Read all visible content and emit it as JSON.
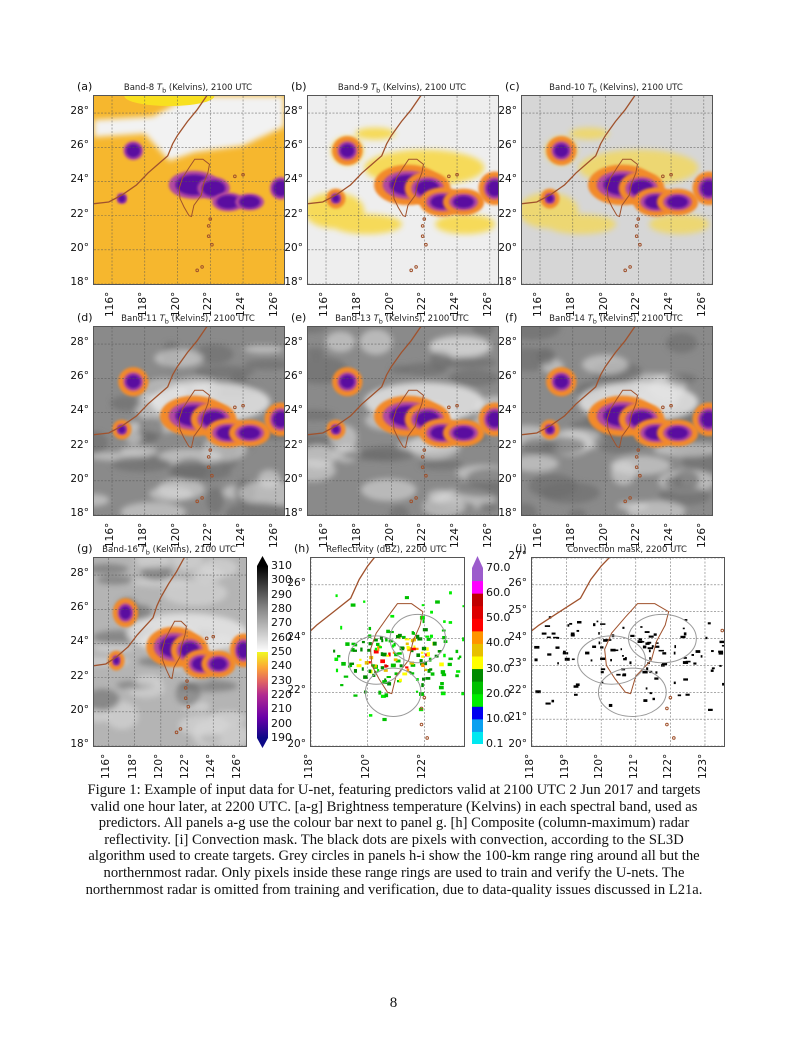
{
  "figure": {
    "panels": [
      {
        "label": "(a)",
        "title_pre": "Band-8 ",
        "title_var": "T",
        "title_sub": "b",
        "title_post": " (Kelvins), 2100 UTC",
        "style": "band8",
        "lat_ticks": [
          "18°",
          "20°",
          "22°",
          "24°",
          "26°",
          "28°"
        ],
        "lon_ticks": [
          "116°",
          "118°",
          "120°",
          "122°",
          "124°",
          "126°"
        ]
      },
      {
        "label": "(b)",
        "title_pre": "Band-9 ",
        "title_var": "T",
        "title_sub": "b",
        "title_post": " (Kelvins), 2100 UTC",
        "style": "band9",
        "lat_ticks": [
          "18°",
          "20°",
          "22°",
          "24°",
          "26°",
          "28°"
        ],
        "lon_ticks": [
          "116°",
          "118°",
          "120°",
          "122°",
          "124°",
          "126°"
        ]
      },
      {
        "label": "(c)",
        "title_pre": "Band-10 ",
        "title_var": "T",
        "title_sub": "b",
        "title_post": " (Kelvins), 2100 UTC",
        "style": "band10",
        "lat_ticks": [
          "18°",
          "20°",
          "22°",
          "24°",
          "26°",
          "28°"
        ],
        "lon_ticks": [
          "116°",
          "118°",
          "120°",
          "122°",
          "124°",
          "126°"
        ]
      },
      {
        "label": "(d)",
        "title_pre": "Band-11 ",
        "title_var": "T",
        "title_sub": "b",
        "title_post": " (Kelvins), 2100 UTC",
        "style": "ir",
        "lat_ticks": [
          "18°",
          "20°",
          "22°",
          "24°",
          "26°",
          "28°"
        ],
        "lon_ticks": [
          "116°",
          "118°",
          "120°",
          "122°",
          "124°",
          "126°"
        ]
      },
      {
        "label": "(e)",
        "title_pre": "Band-13 ",
        "title_var": "T",
        "title_sub": "b",
        "title_post": " (Kelvins), 2100 UTC",
        "style": "ir",
        "lat_ticks": [
          "18°",
          "20°",
          "22°",
          "24°",
          "26°",
          "28°"
        ],
        "lon_ticks": [
          "116°",
          "118°",
          "120°",
          "122°",
          "124°",
          "126°"
        ]
      },
      {
        "label": "(f)",
        "title_pre": "Band-14 ",
        "title_var": "T",
        "title_sub": "b",
        "title_post": " (Kelvins), 2100 UTC",
        "style": "ir",
        "lat_ticks": [
          "18°",
          "20°",
          "22°",
          "24°",
          "26°",
          "28°"
        ],
        "lon_ticks": [
          "116°",
          "118°",
          "120°",
          "122°",
          "124°",
          "126°"
        ]
      },
      {
        "label": "(g)",
        "title_pre": "Band-16 ",
        "title_var": "T",
        "title_sub": "b",
        "title_post": " (Kelvins), 2100 UTC",
        "style": "ir16",
        "lat_ticks": [
          "18°",
          "20°",
          "22°",
          "24°",
          "26°",
          "28°"
        ],
        "lon_ticks": [
          "116°",
          "118°",
          "120°",
          "122°",
          "124°",
          "126°"
        ]
      },
      {
        "label": "(h)",
        "title_pre": "Reflectivity (dBZ), 2200 UTC",
        "title_var": "",
        "title_sub": "",
        "title_post": "",
        "style": "radar",
        "lat_ticks": [
          "20°",
          "22°",
          "24°",
          "26°"
        ],
        "lon_ticks": [
          "118°",
          "120°",
          "122°"
        ]
      },
      {
        "label": "(i)",
        "title_pre": "Convection mask, 2200 UTC",
        "title_var": "",
        "title_sub": "",
        "title_post": "",
        "style": "mask",
        "lat_ticks": [
          "20°",
          "21°",
          "22°",
          "23°",
          "24°",
          "25°",
          "26°",
          "27°"
        ],
        "lon_ticks": [
          "118°",
          "119°",
          "120°",
          "121°",
          "122°",
          "123°"
        ]
      }
    ],
    "colorbar_tb": {
      "ticks": [
        "190",
        "200",
        "210",
        "220",
        "230",
        "240",
        "250",
        "260",
        "270",
        "280",
        "290",
        "300",
        "310"
      ]
    },
    "colorbar_refl": {
      "ticks": [
        "0.1",
        "10.0",
        "20.0",
        "30.0",
        "40.0",
        "50.0",
        "60.0",
        "70.0"
      ],
      "colors": [
        "#00e8f0",
        "#0aa0f0",
        "#0000f0",
        "#00ee00",
        "#00c000",
        "#008a00",
        "#ffff00",
        "#e8c000",
        "#ff9400",
        "#ff0000",
        "#dd0000",
        "#c00000",
        "#ff00ff",
        "#9c5ccc"
      ]
    },
    "colors": {
      "coast": "#a0522d",
      "storm": "#5a0ca0",
      "range_ring": "#999999"
    }
  },
  "caption": "Figure 1: Example of input data for U-net, featuring predictors valid at 2100 UTC 2 Jun 2017 and targets valid one hour later, at 2200 UTC. [a-g] Brightness temperature (Kelvins) in each spectral band, used as predictors. All panels a-g use the colour bar next to panel g. [h] Composite (column-maximum) radar reflectivity. [i] Convection mask. The black dots are pixels with convection, according to the SL3D algorithm used to create targets. Grey circles in panels h-i show the 100-km range ring around all but the northernmost radar. Only pixels inside these range rings are used to train and verify the U-nets. The northernmost radar is omitted from training and verification, due to data-quality issues discussed in L21a.",
  "page_number": "8"
}
